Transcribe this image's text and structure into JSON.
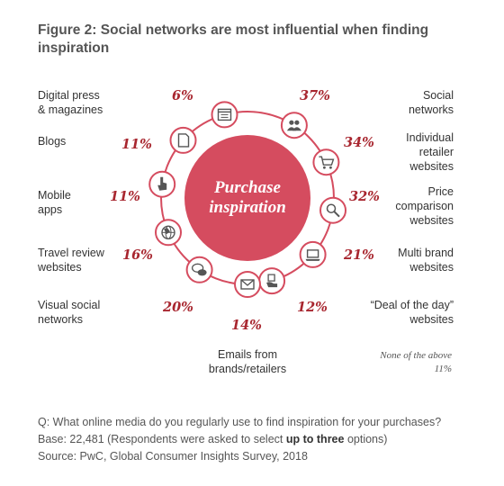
{
  "chart_data": {
    "type": "table",
    "title": "Figure 2: Social networks are most influential when finding inspiration",
    "center_label": [
      "Purchase",
      "inspiration"
    ],
    "items": [
      {
        "label": "Social networks",
        "lines": [
          "Social",
          "networks"
        ],
        "value": "37%",
        "icon": "people-icon"
      },
      {
        "label": "Individual retailer websites",
        "lines": [
          "Individual",
          "retailer",
          "websites"
        ],
        "value": "34%",
        "icon": "shopping-cart-icon"
      },
      {
        "label": "Price comparison websites",
        "lines": [
          "Price",
          "comparison",
          "websites"
        ],
        "value": "32%",
        "icon": "magnifier-icon"
      },
      {
        "label": "Multi brand websites",
        "lines": [
          "Multi brand",
          "websites"
        ],
        "value": "21%",
        "icon": "laptop-icon"
      },
      {
        "label": "“Deal of the day” websites",
        "lines": [
          "“Deal of the day”",
          "websites"
        ],
        "value": "12%",
        "icon": "tag-hand-icon"
      },
      {
        "label": "Emails from brands/retailers",
        "lines": [
          "Emails from",
          "brands/retailers"
        ],
        "value": "14%",
        "icon": "envelope-icon"
      },
      {
        "label": "Visual social networks",
        "lines": [
          "Visual social",
          "networks"
        ],
        "value": "20%",
        "icon": "speech-bubbles-icon"
      },
      {
        "label": "Travel review websites",
        "lines": [
          "Travel review",
          "websites"
        ],
        "value": "16%",
        "icon": "globe-icon"
      },
      {
        "label": "Mobile apps",
        "lines": [
          "Mobile",
          "apps"
        ],
        "value": "11%",
        "icon": "pointer-hand-icon"
      },
      {
        "label": "Blogs",
        "lines": [
          "Blogs"
        ],
        "value": "11%",
        "icon": "document-icon"
      },
      {
        "label": "Digital press & magazines",
        "lines": [
          "Digital press",
          "& magazines"
        ],
        "value": "6%",
        "icon": "browser-window-icon"
      }
    ],
    "none_of_above": {
      "label": "None of the above",
      "value": "11%"
    }
  },
  "footer": {
    "question": "Q: What online media do you regularly use to find inspiration for your purchases?",
    "base_prefix": "Base: 22,481 (Respondents were asked to select ",
    "base_bold": "up to three",
    "base_suffix": " options)",
    "source": "Source: PwC, Global Consumer Insights Survey, 2018"
  },
  "colors": {
    "accent": "#d54c5f",
    "value_red": "#a8262f",
    "icon_stroke": "#555555"
  }
}
